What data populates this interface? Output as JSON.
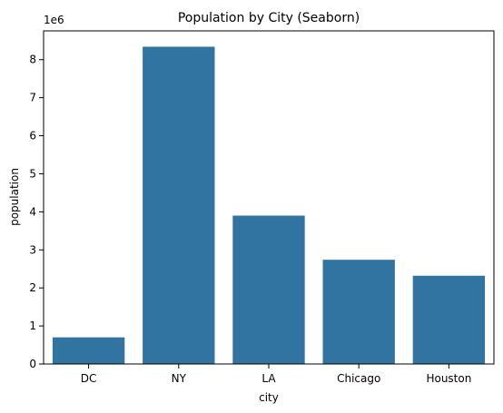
{
  "chart_data": {
    "type": "bar",
    "title": "Population by City (Seaborn)",
    "xlabel": "city",
    "ylabel": "population",
    "y_offset_label": "1e6",
    "categories": [
      "DC",
      "NY",
      "LA",
      "Chicago",
      "Houston"
    ],
    "values": [
      700000,
      8340000,
      3900000,
      2740000,
      2320000
    ],
    "ylim": [
      0,
      8757000
    ],
    "yticks": [
      0,
      1,
      2,
      3,
      4,
      5,
      6,
      7,
      8
    ],
    "ytick_labels": [
      "0",
      "1",
      "2",
      "3",
      "4",
      "5",
      "6",
      "7",
      "8"
    ],
    "grid": false,
    "bar_color": "#3274a1"
  }
}
